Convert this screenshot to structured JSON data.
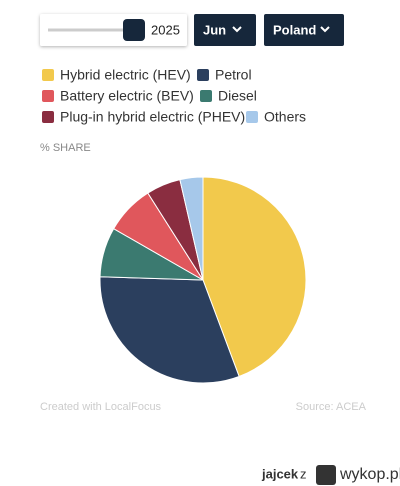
{
  "controls": {
    "year": 2025,
    "month": "Jun",
    "country": "Poland"
  },
  "chart_data": {
    "type": "pie",
    "subtitle": "% SHARE",
    "categories": [
      "Hybrid electric (HEV)",
      "Petrol",
      "Battery electric (BEV)",
      "Diesel",
      "Plug-in hybrid electric (PHEV)",
      "Others"
    ],
    "values": [
      44.3,
      31.2,
      7.7,
      7.8,
      5.4,
      3.6
    ],
    "colors": [
      "#f2c94c",
      "#2b3f5e",
      "#e0575c",
      "#3b7a70",
      "#8a2d40",
      "#a6c8ea"
    ],
    "slice_order": [
      0,
      1,
      3,
      2,
      4,
      5
    ]
  },
  "footer": {
    "credit": "Created with LocalFocus",
    "source": "Source:  ACEA"
  },
  "watermark": {
    "user": "jajcek",
    "separator": "z",
    "site": "wykop.pl"
  }
}
